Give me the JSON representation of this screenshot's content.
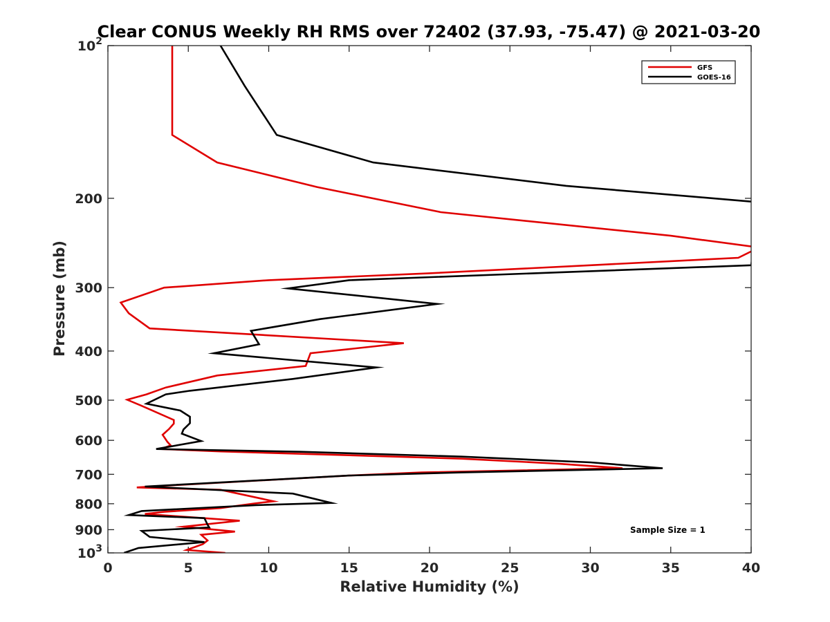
{
  "chart_data": {
    "type": "line",
    "title": "Clear CONUS Weekly RH RMS over 72402 (37.93, -75.47) @ 2021-03-20",
    "xlabel": "Relative Humidity (%)",
    "ylabel": "Pressure (mb)",
    "xlim": [
      0,
      40
    ],
    "ylim": [
      100,
      1000
    ],
    "y_scale": "log",
    "y_reversed": true,
    "x_ticks": [
      0,
      5,
      10,
      15,
      20,
      25,
      30,
      35,
      40
    ],
    "x_tick_labels": [
      "0",
      "5",
      "10",
      "15",
      "20",
      "25",
      "30",
      "35",
      "40"
    ],
    "y_ticks": [
      {
        "value": 100,
        "label": "10",
        "sup": "2"
      },
      {
        "value": 200,
        "label": "200",
        "sup": ""
      },
      {
        "value": 300,
        "label": "300",
        "sup": ""
      },
      {
        "value": 400,
        "label": "400",
        "sup": ""
      },
      {
        "value": 500,
        "label": "500",
        "sup": ""
      },
      {
        "value": 600,
        "label": "600",
        "sup": ""
      },
      {
        "value": 700,
        "label": "700",
        "sup": ""
      },
      {
        "value": 800,
        "label": "800",
        "sup": ""
      },
      {
        "value": 900,
        "label": "900",
        "sup": ""
      },
      {
        "value": 1000,
        "label": "10",
        "sup": "3"
      }
    ],
    "legend_position": "top-right",
    "annotation": "Sample Size = 1",
    "series": [
      {
        "name": "GFS",
        "color": "#e00000",
        "points": [
          [
            4.0,
            100
          ],
          [
            4.0,
            150
          ],
          [
            6.8,
            170
          ],
          [
            13.0,
            190
          ],
          [
            20.7,
            213
          ],
          [
            35.0,
            237
          ],
          [
            40.5,
            250
          ],
          [
            39.2,
            262
          ],
          [
            30.0,
            271
          ],
          [
            20.0,
            281
          ],
          [
            10.0,
            290
          ],
          [
            3.5,
            300
          ],
          [
            0.8,
            321
          ],
          [
            1.3,
            337
          ],
          [
            2.6,
            361
          ],
          [
            18.4,
            386
          ],
          [
            12.6,
            404
          ],
          [
            12.3,
            428
          ],
          [
            6.8,
            447
          ],
          [
            3.6,
            472
          ],
          [
            2.4,
            487
          ],
          [
            1.2,
            499
          ],
          [
            2.1,
            513
          ],
          [
            4.1,
            547
          ],
          [
            4.1,
            556
          ],
          [
            3.8,
            570
          ],
          [
            3.4,
            585
          ],
          [
            3.7,
            604
          ],
          [
            3.9,
            614
          ],
          [
            3.3,
            624
          ],
          [
            7.0,
            631
          ],
          [
            15.0,
            642
          ],
          [
            22.0,
            652
          ],
          [
            28.0,
            667
          ],
          [
            32.0,
            681
          ],
          [
            19.5,
            694
          ],
          [
            15.0,
            704
          ],
          [
            3.6,
            737
          ],
          [
            1.8,
            743
          ],
          [
            7.0,
            751
          ],
          [
            10.3,
            791
          ],
          [
            9.1,
            799
          ],
          [
            7.0,
            816
          ],
          [
            3.5,
            830
          ],
          [
            2.3,
            838
          ],
          [
            8.2,
            864
          ],
          [
            4.7,
            888
          ],
          [
            6.5,
            899
          ],
          [
            7.9,
            908
          ],
          [
            5.8,
            921
          ],
          [
            6.2,
            945
          ],
          [
            5.9,
            961
          ],
          [
            4.9,
            987
          ],
          [
            7.3,
            1000
          ]
        ]
      },
      {
        "name": "GOES-16",
        "color": "#000000",
        "points": [
          [
            7.0,
            100
          ],
          [
            8.5,
            120
          ],
          [
            10.5,
            150
          ],
          [
            16.5,
            170
          ],
          [
            28.5,
            189
          ],
          [
            40.0,
            203
          ],
          [
            40.5,
            210
          ],
          [
            40.0,
            271
          ],
          [
            26.5,
            281
          ],
          [
            15.0,
            290
          ],
          [
            11.2,
            301
          ],
          [
            20.5,
            323
          ],
          [
            13.2,
            346
          ],
          [
            8.9,
            365
          ],
          [
            9.4,
            388
          ],
          [
            6.6,
            404
          ],
          [
            16.7,
            431
          ],
          [
            11.5,
            454
          ],
          [
            5.1,
            479
          ],
          [
            3.6,
            487
          ],
          [
            2.4,
            508
          ],
          [
            4.5,
            524
          ],
          [
            5.1,
            539
          ],
          [
            5.1,
            555
          ],
          [
            4.7,
            571
          ],
          [
            4.6,
            582
          ],
          [
            5.8,
            602
          ],
          [
            3.0,
            624
          ],
          [
            12.0,
            632
          ],
          [
            22.0,
            646
          ],
          [
            30.0,
            663
          ],
          [
            34.5,
            681
          ],
          [
            22.0,
            694
          ],
          [
            15.0,
            704
          ],
          [
            2.3,
            740
          ],
          [
            11.5,
            764
          ],
          [
            13.9,
            797
          ],
          [
            9.2,
            805
          ],
          [
            2.1,
            827
          ],
          [
            1.3,
            842
          ],
          [
            6.0,
            854
          ],
          [
            6.2,
            880
          ],
          [
            6.3,
            891
          ],
          [
            2.1,
            905
          ],
          [
            2.6,
            930
          ],
          [
            6.0,
            952
          ],
          [
            1.9,
            978
          ],
          [
            1.0,
            1000
          ]
        ]
      }
    ]
  }
}
